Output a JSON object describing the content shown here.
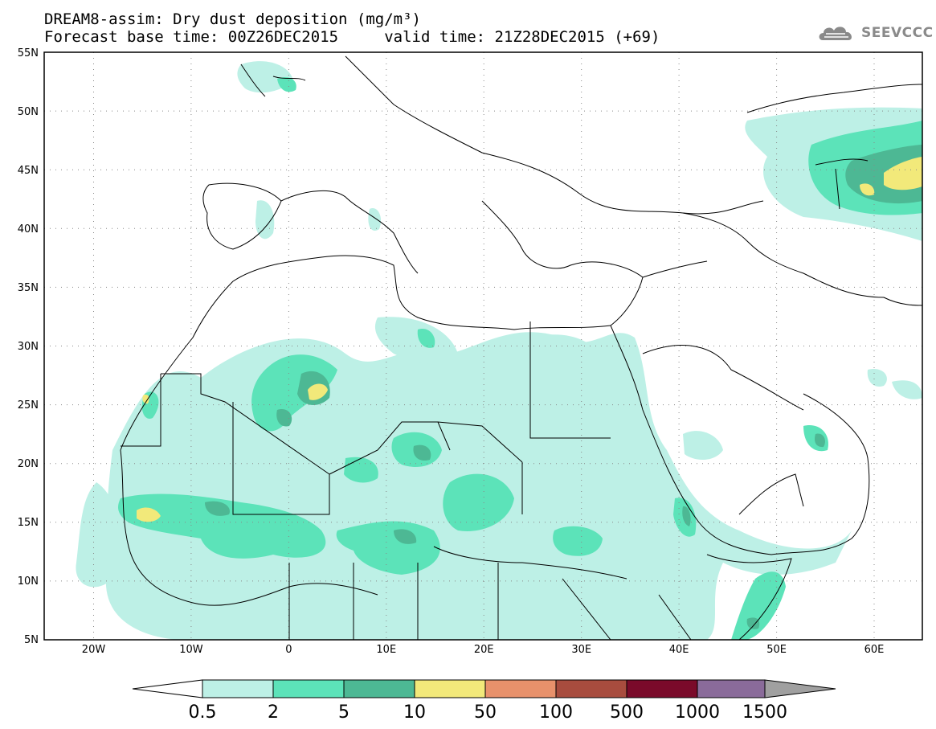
{
  "header": {
    "title": "DREAM8-assim: Dry dust deposition (mg/m³)",
    "subtitle": "Forecast base time: 00Z26DEC2015     valid time: 21Z28DEC2015 (+69)",
    "logo_text": "SEEVCCC",
    "logo_icon": "cloud-icon"
  },
  "map": {
    "lon_range": [
      -25,
      65
    ],
    "lat_range": [
      5,
      55
    ],
    "lon_ticks": [
      "20W",
      "10W",
      "0",
      "10E",
      "20E",
      "30E",
      "40E",
      "50E",
      "60E"
    ],
    "lat_ticks": [
      "55N",
      "50N",
      "45N",
      "40N",
      "35N",
      "30N",
      "25N",
      "20N",
      "15N",
      "10N",
      "5N"
    ],
    "grid": "dotted"
  },
  "colorbar": {
    "labels": [
      "0.5",
      "2",
      "5",
      "10",
      "50",
      "100",
      "500",
      "1000",
      "1500"
    ],
    "colors": [
      "#bdf0e6",
      "#5ce3b9",
      "#4db894",
      "#f2e97a",
      "#e8916b",
      "#a84c3e",
      "#7a0a2a",
      "#8a6b9a"
    ],
    "under_color": "#ffffff",
    "over_color": "#a0a0a0"
  }
}
